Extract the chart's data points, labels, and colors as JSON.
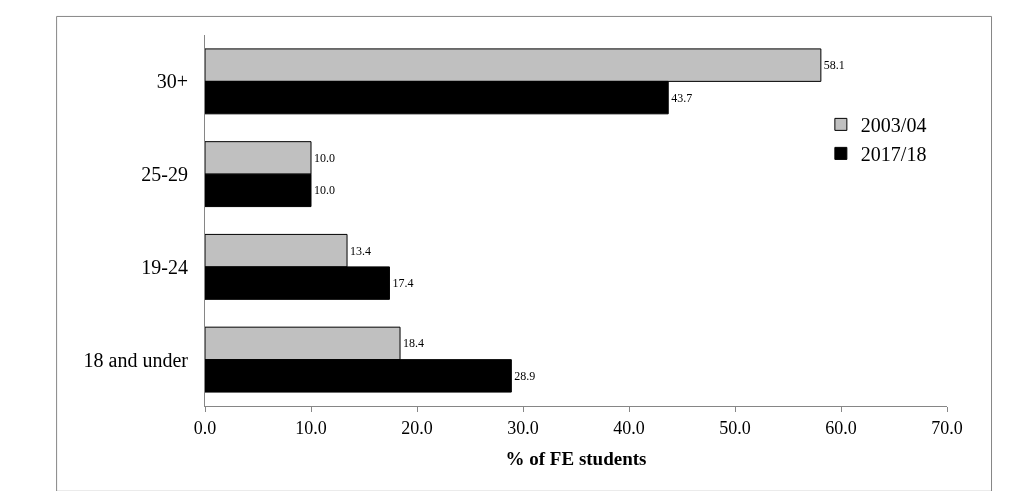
{
  "chart_data": {
    "type": "bar",
    "orientation": "horizontal",
    "xlabel": "% of FE students",
    "categories": [
      "30+",
      "25-29",
      "19-24",
      "18 and under"
    ],
    "series": [
      {
        "name": "2003/04",
        "color": "#c0c0c0",
        "values": [
          58.1,
          10.0,
          13.4,
          18.4
        ],
        "value_labels": [
          "58.1",
          "10.0",
          "13.4",
          "18.4"
        ]
      },
      {
        "name": "2017/18",
        "color": "#000000",
        "values": [
          43.7,
          10.0,
          17.4,
          28.9
        ],
        "value_labels": [
          "43.7",
          "10.0",
          "17.4",
          "28.9"
        ]
      }
    ],
    "xlim": [
      0,
      70
    ],
    "xticks": [
      {
        "value": 0,
        "label": "0.0"
      },
      {
        "value": 10,
        "label": "10.0"
      },
      {
        "value": 20,
        "label": "20.0"
      },
      {
        "value": 30,
        "label": "30.0"
      },
      {
        "value": 40,
        "label": "40.0"
      },
      {
        "value": 50,
        "label": "50.0"
      },
      {
        "value": 60,
        "label": "60.0"
      },
      {
        "value": 70,
        "label": "70.0"
      }
    ],
    "legend": "right"
  }
}
